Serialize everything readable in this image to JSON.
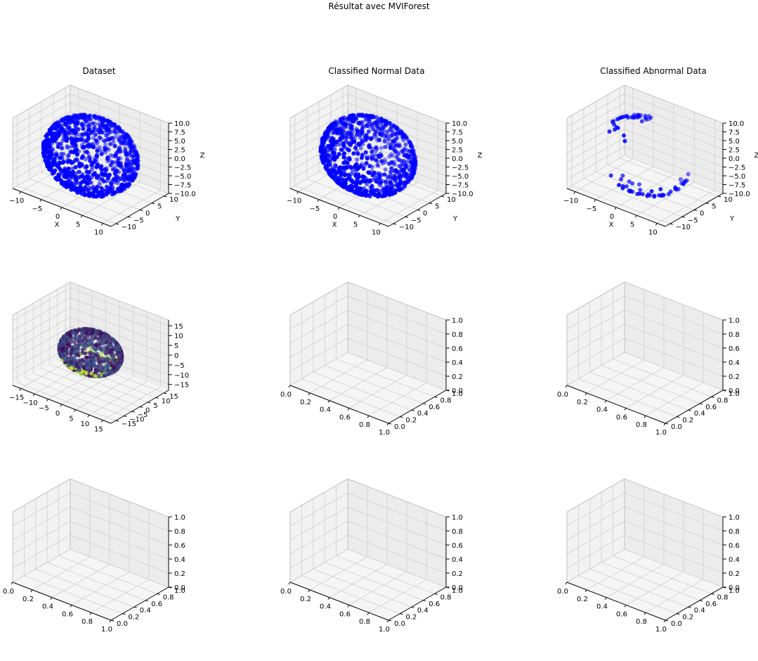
{
  "figure": {
    "suptitle": "Résultat avec MVIForest"
  },
  "chart_data": [
    {
      "type": "scatter3d",
      "title": "Dataset",
      "xlabel": "X",
      "ylabel": "Y",
      "zlabel": "Z",
      "xlim": [
        -12,
        12
      ],
      "ylim": [
        -12,
        12
      ],
      "zlim": [
        -10,
        10
      ],
      "xticks": [
        -10,
        -5,
        0,
        5,
        10
      ],
      "yticks": [
        -10,
        -5,
        0,
        5,
        10
      ],
      "zticks": [
        -10.0,
        -7.5,
        -5.0,
        -2.5,
        0.0,
        2.5,
        5.0,
        7.5,
        10.0
      ],
      "tick_labels": {
        "x": [
          "−10",
          "−5",
          "0",
          "5",
          "10"
        ],
        "y": [
          "−10",
          "−5",
          "0",
          "5",
          "10"
        ],
        "z": [
          "−10.0",
          "−7.5",
          "−5.0",
          "−2.5",
          "0.0",
          "2.5",
          "5.0",
          "7.5",
          "10.0"
        ]
      },
      "points": {
        "shape": "sphere-surface",
        "radius": 10,
        "count": 1000,
        "color": "#0000ff"
      }
    },
    {
      "type": "scatter3d",
      "title": "Classified Normal Data",
      "xlabel": "X",
      "ylabel": "Y",
      "zlabel": "Z",
      "xlim": [
        -12,
        12
      ],
      "ylim": [
        -12,
        12
      ],
      "zlim": [
        -10,
        10
      ],
      "xticks": [
        -10,
        -5,
        0,
        5,
        10
      ],
      "yticks": [
        -10,
        -5,
        0,
        5,
        10
      ],
      "zticks": [
        -10.0,
        -7.5,
        -5.0,
        -2.5,
        0.0,
        2.5,
        5.0,
        7.5,
        10.0
      ],
      "tick_labels": {
        "x": [
          "−10",
          "−5",
          "0",
          "5",
          "10"
        ],
        "y": [
          "−10",
          "−5",
          "0",
          "5",
          "10"
        ],
        "z": [
          "−10.0",
          "−7.5",
          "−5.0",
          "−2.5",
          "0.0",
          "2.5",
          "5.0",
          "7.5",
          "10.0"
        ]
      },
      "points": {
        "shape": "sphere-surface",
        "radius": 10,
        "count": 920,
        "color": "#0000ff"
      }
    },
    {
      "type": "scatter3d",
      "title": "Classified Abnormal Data",
      "xlabel": "X",
      "ylabel": "Y",
      "zlabel": "Z",
      "xlim": [
        -12,
        12
      ],
      "ylim": [
        -12,
        12
      ],
      "zlim": [
        -10,
        10
      ],
      "xticks": [
        -10,
        -5,
        0,
        5,
        10
      ],
      "yticks": [
        -10,
        -5,
        0,
        5,
        10
      ],
      "zticks": [
        -10.0,
        -7.5,
        -5.0,
        -2.5,
        0.0,
        2.5,
        5.0,
        7.5,
        10.0
      ],
      "tick_labels": {
        "x": [
          "−10",
          "−5",
          "0",
          "5",
          "10"
        ],
        "y": [
          "−10",
          "−5",
          "0",
          "5",
          "10"
        ],
        "z": [
          "−10.0",
          "−7.5",
          "−5.0",
          "−2.5",
          "0.0",
          "2.5",
          "5.0",
          "7.5",
          "10.0"
        ]
      },
      "points": {
        "shape": "sphere-surface-patches",
        "radius": 10,
        "count": 80,
        "color": "#0000ff"
      }
    },
    {
      "type": "scatter3d",
      "title": "",
      "xlabel": "",
      "ylabel": "",
      "zlabel": "",
      "xlim": [
        -18,
        18
      ],
      "ylim": [
        -18,
        18
      ],
      "zlim": [
        -18,
        18
      ],
      "xticks": [
        -15,
        -10,
        -5,
        0,
        5,
        10,
        15
      ],
      "yticks": [
        -15,
        -10,
        -5,
        0,
        5,
        10,
        15
      ],
      "zticks": [
        -15,
        -10,
        -5,
        0,
        5,
        10,
        15
      ],
      "tick_labels": {
        "x": [
          "−15",
          "−10",
          "−5",
          "0",
          "5",
          "10",
          "15"
        ],
        "y": [
          "−15",
          "−10",
          "−5",
          "0",
          "5",
          "10",
          "15"
        ],
        "z": [
          "−15",
          "−10",
          "−5",
          "0",
          "5",
          "10",
          "15"
        ]
      },
      "points": {
        "shape": "sphere-surface",
        "radius": 10,
        "count": 1000,
        "colormap": "viridis",
        "colors": [
          "#440154",
          "#3b528b",
          "#21918c",
          "#5ec962",
          "#b5de2b",
          "#fde725"
        ]
      }
    },
    {
      "type": "scatter3d",
      "title": "",
      "empty": true,
      "xlim": [
        0,
        1
      ],
      "ylim": [
        0,
        1
      ],
      "zlim": [
        0,
        1
      ],
      "tick_labels": {
        "x": [
          "0.0",
          "0.2",
          "0.4",
          "0.6",
          "0.8",
          "1.0"
        ],
        "y": [
          "0.0",
          "0.2",
          "0.4",
          "0.6",
          "0.8",
          "1.0"
        ],
        "z": [
          "0.0",
          "0.2",
          "0.4",
          "0.6",
          "0.8",
          "1.0"
        ]
      }
    },
    {
      "type": "scatter3d",
      "title": "",
      "empty": true,
      "xlim": [
        0,
        1
      ],
      "ylim": [
        0,
        1
      ],
      "zlim": [
        0,
        1
      ],
      "tick_labels": {
        "x": [
          "0.0",
          "0.2",
          "0.4",
          "0.6",
          "0.8",
          "1.0"
        ],
        "y": [
          "0.0",
          "0.2",
          "0.4",
          "0.6",
          "0.8",
          "1.0"
        ],
        "z": [
          "0.0",
          "0.2",
          "0.4",
          "0.6",
          "0.8",
          "1.0"
        ]
      }
    },
    {
      "type": "scatter3d",
      "title": "",
      "empty": true,
      "xlim": [
        0,
        1
      ],
      "ylim": [
        0,
        1
      ],
      "zlim": [
        0,
        1
      ],
      "tick_labels": {
        "x": [
          "0.0",
          "0.2",
          "0.4",
          "0.6",
          "0.8",
          "1.0"
        ],
        "y": [
          "0.0",
          "0.2",
          "0.4",
          "0.6",
          "0.8",
          "1.0"
        ],
        "z": [
          "0.0",
          "0.2",
          "0.4",
          "0.6",
          "0.8",
          "1.0"
        ]
      }
    },
    {
      "type": "scatter3d",
      "title": "",
      "empty": true,
      "xlim": [
        0,
        1
      ],
      "ylim": [
        0,
        1
      ],
      "zlim": [
        0,
        1
      ],
      "tick_labels": {
        "x": [
          "0.0",
          "0.2",
          "0.4",
          "0.6",
          "0.8",
          "1.0"
        ],
        "y": [
          "0.0",
          "0.2",
          "0.4",
          "0.6",
          "0.8",
          "1.0"
        ],
        "z": [
          "0.0",
          "0.2",
          "0.4",
          "0.6",
          "0.8",
          "1.0"
        ]
      }
    },
    {
      "type": "scatter3d",
      "title": "",
      "empty": true,
      "xlim": [
        0,
        1
      ],
      "ylim": [
        0,
        1
      ],
      "zlim": [
        0,
        1
      ],
      "tick_labels": {
        "x": [
          "0.0",
          "0.2",
          "0.4",
          "0.6",
          "0.8",
          "1.0"
        ],
        "y": [
          "0.0",
          "0.2",
          "0.4",
          "0.6",
          "0.8",
          "1.0"
        ],
        "z": [
          "0.0",
          "0.2",
          "0.4",
          "0.6",
          "0.8",
          "1.0"
        ]
      }
    }
  ]
}
